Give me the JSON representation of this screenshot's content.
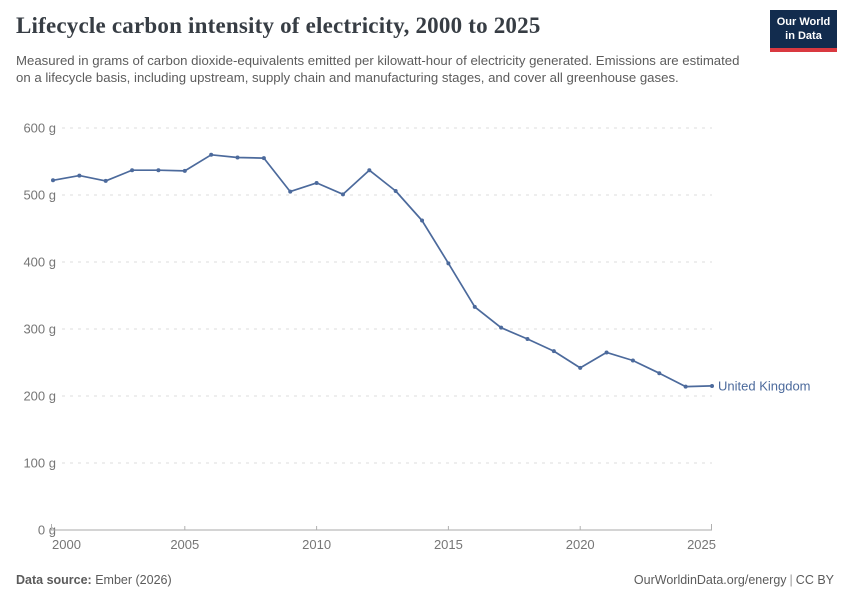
{
  "header": {
    "title": "Lifecycle carbon intensity of electricity, 2000 to 2025",
    "subtitle": "Measured in grams of carbon dioxide-equivalents emitted per kilowatt-hour of electricity generated. Emissions are estimated on a lifecycle basis, including upstream, supply chain and manufacturing stages, and cover all greenhouse gases.",
    "logo": {
      "line1": "Our World",
      "line2": "in Data"
    }
  },
  "chart_data": {
    "type": "line",
    "title": "Lifecycle carbon intensity of electricity, 2000 to 2025",
    "x": [
      2000,
      2001,
      2002,
      2003,
      2004,
      2005,
      2006,
      2007,
      2008,
      2009,
      2010,
      2011,
      2012,
      2013,
      2014,
      2015,
      2016,
      2017,
      2018,
      2019,
      2020,
      2021,
      2022,
      2023,
      2024,
      2025
    ],
    "series": [
      {
        "name": "United Kingdom",
        "color": "#4c6a9c",
        "values": [
          522,
          529,
          521,
          537,
          537,
          536,
          560,
          556,
          555,
          505,
          518,
          501,
          537,
          506,
          462,
          398,
          333,
          302,
          285,
          267,
          242,
          265,
          253,
          234,
          214,
          215
        ]
      }
    ],
    "xlabel": "",
    "ylabel": "",
    "ylim": [
      0,
      600
    ],
    "xlim": [
      2000,
      2025
    ],
    "yticks": [
      {
        "value": 600,
        "label": "600 g"
      },
      {
        "value": 500,
        "label": "500 g"
      },
      {
        "value": 400,
        "label": "400 g"
      },
      {
        "value": 300,
        "label": "300 g"
      },
      {
        "value": 200,
        "label": "200 g"
      },
      {
        "value": 100,
        "label": "100 g"
      },
      {
        "value": 0,
        "label": "0 g"
      }
    ],
    "xticks": [
      {
        "value": 2000,
        "label": "2000"
      },
      {
        "value": 2005,
        "label": "2005"
      },
      {
        "value": 2010,
        "label": "2010"
      },
      {
        "value": 2015,
        "label": "2015"
      },
      {
        "value": 2020,
        "label": "2020"
      },
      {
        "value": 2025,
        "label": "2025"
      }
    ],
    "grid": "horizontal-dashed",
    "legend": "end-of-line-label"
  },
  "footer": {
    "source_label": "Data source:",
    "source_value": "Ember (2026)",
    "site": "OurWorldinData.org/energy",
    "separator": "|",
    "license": "CC BY"
  },
  "colors": {
    "line": "#4c6a9c",
    "entity_label": "#4c6a9c",
    "grid": "#dcdcdc",
    "axis": "#a8a8a8",
    "tick": "#b0b0b0",
    "tick_label": "#767676",
    "title": "#373d44",
    "subtitle": "#5c5c5c",
    "footer": "#5b5b5b",
    "logo_bg": "#122c4e",
    "logo_red": "#d93940"
  }
}
